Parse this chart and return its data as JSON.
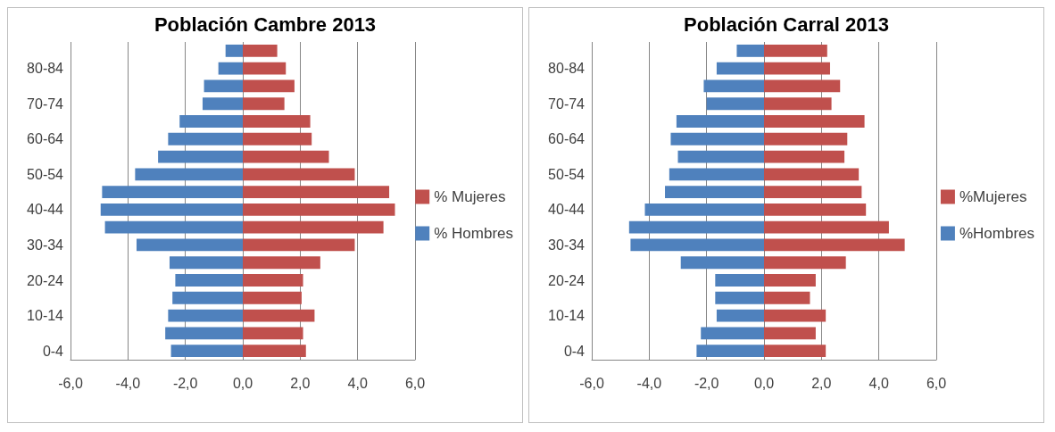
{
  "chart_data": [
    {
      "type": "bar",
      "orientation": "horizontal",
      "stacked": true,
      "title": "Población Cambre 2013",
      "categories": [
        null,
        "80-84",
        null,
        "70-74",
        null,
        "60-64",
        null,
        "50-54",
        null,
        "40-44",
        null,
        "30-34",
        null,
        "20-24",
        null,
        "10-14",
        null,
        "0-4"
      ],
      "series": [
        {
          "name": "% Mujeres",
          "color": "#c0504d",
          "values": [
            1.2,
            1.5,
            1.8,
            1.45,
            2.35,
            2.4,
            3.0,
            3.9,
            5.1,
            5.3,
            4.9,
            3.9,
            2.7,
            2.1,
            2.05,
            2.5,
            2.1,
            2.2
          ]
        },
        {
          "name": "% Hombres",
          "color": "#4f81bd",
          "values": [
            -0.6,
            -0.85,
            -1.35,
            -1.4,
            -2.2,
            -2.6,
            -2.95,
            -3.75,
            -4.9,
            -4.95,
            -4.8,
            -3.7,
            -2.55,
            -2.35,
            -2.45,
            -2.6,
            -2.7,
            -2.5
          ]
        }
      ],
      "xlim": [
        -6,
        6
      ],
      "xticks": [
        {
          "value": -6,
          "label": "-6,0"
        },
        {
          "value": -4,
          "label": "-4,0"
        },
        {
          "value": -2,
          "label": "-2,0"
        },
        {
          "value": 0,
          "label": "0,0"
        },
        {
          "value": 2,
          "label": "2,0"
        },
        {
          "value": 4,
          "label": "4,0"
        },
        {
          "value": 6,
          "label": "6,0"
        }
      ],
      "grid": "x",
      "legend": "right"
    },
    {
      "type": "bar",
      "orientation": "horizontal",
      "stacked": true,
      "title": "Población Carral 2013",
      "categories": [
        null,
        "80-84",
        null,
        "70-74",
        null,
        "60-64",
        null,
        "50-54",
        null,
        "40-44",
        null,
        "30-34",
        null,
        "20-24",
        null,
        "10-14",
        null,
        "0-4"
      ],
      "series": [
        {
          "name": "%Mujeres",
          "color": "#c0504d",
          "values": [
            2.2,
            2.3,
            2.65,
            2.35,
            3.5,
            2.9,
            2.8,
            3.3,
            3.4,
            3.55,
            4.35,
            4.9,
            2.85,
            1.8,
            1.6,
            2.15,
            1.8,
            2.15
          ]
        },
        {
          "name": "%Hombres",
          "color": "#4f81bd",
          "values": [
            -0.95,
            -1.65,
            -2.1,
            -2.0,
            -3.05,
            -3.25,
            -3.0,
            -3.3,
            -3.45,
            -4.15,
            -4.7,
            -4.65,
            -2.9,
            -1.7,
            -1.7,
            -1.65,
            -2.2,
            -2.35
          ]
        }
      ],
      "xlim": [
        -6,
        6
      ],
      "xticks": [
        {
          "value": -6,
          "label": "-6,0"
        },
        {
          "value": -4,
          "label": "-4,0"
        },
        {
          "value": -2,
          "label": "-2,0"
        },
        {
          "value": 0,
          "label": "0,0"
        },
        {
          "value": 2,
          "label": "2,0"
        },
        {
          "value": 4,
          "label": "4,0"
        },
        {
          "value": 6,
          "label": "6,0"
        }
      ],
      "grid": "x",
      "legend": "right"
    }
  ]
}
